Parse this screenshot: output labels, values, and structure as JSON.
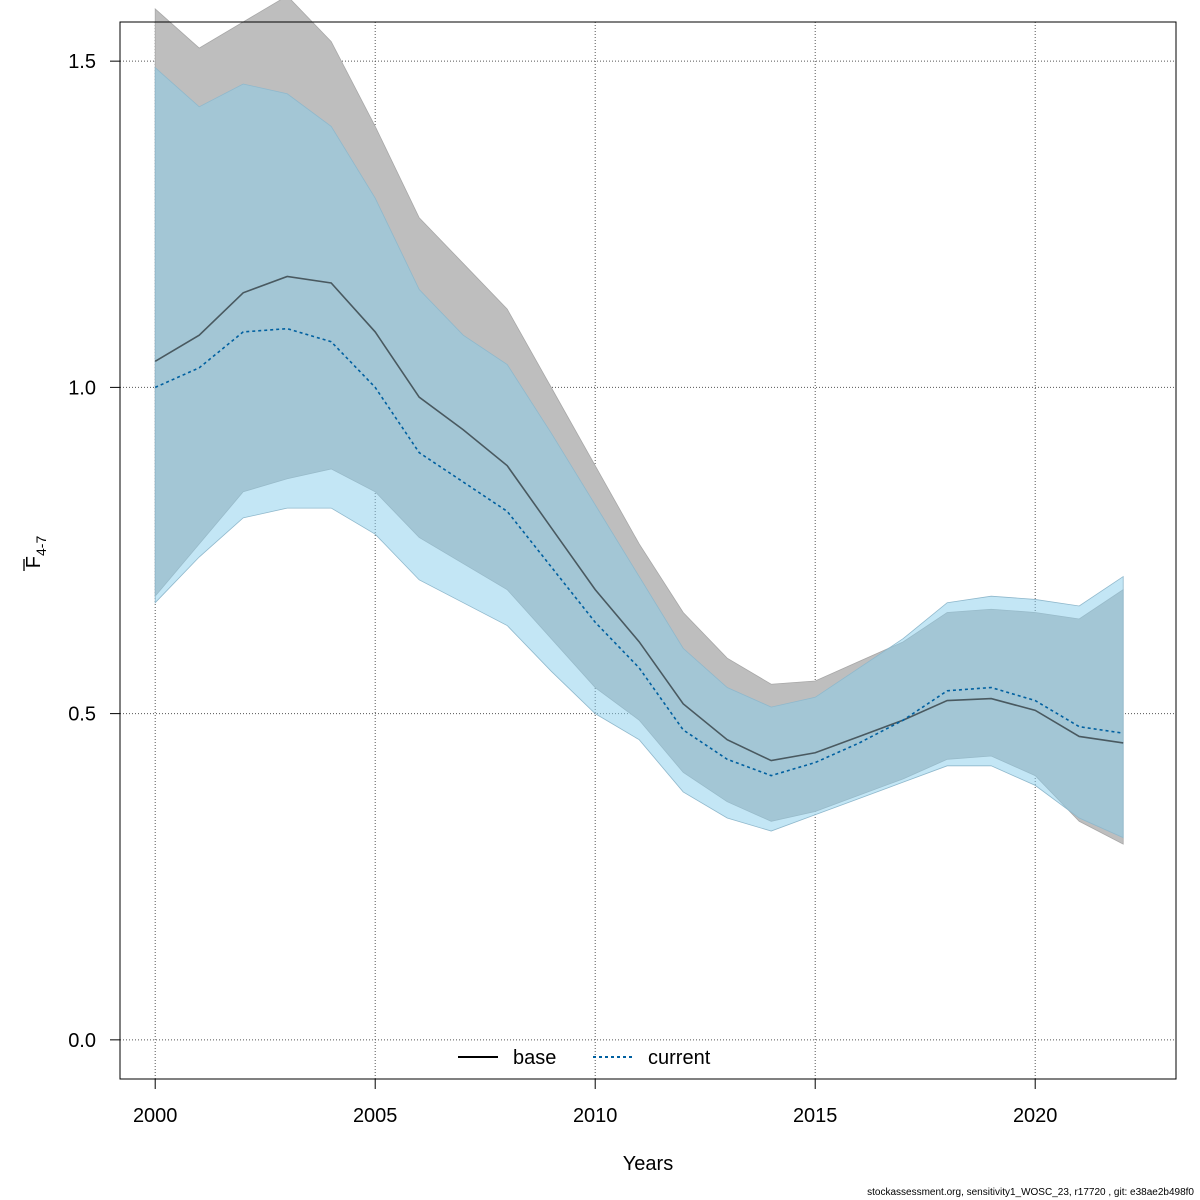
{
  "chart_data": {
    "type": "line",
    "xlabel": "Years",
    "ylabel": "F",
    "ylabel_sub": "4-7",
    "xlim": [
      1999.2,
      2023.2
    ],
    "ylim": [
      -0.06,
      1.56
    ],
    "x_ticks": [
      2000,
      2005,
      2010,
      2015,
      2020
    ],
    "y_ticks": [
      0.0,
      0.5,
      1.0,
      1.5
    ],
    "y_tick_labels": [
      "0.0",
      "0.5",
      "1.0",
      "1.5"
    ],
    "grid": true,
    "legend_position": "bottom-center",
    "x": [
      2000,
      2001,
      2002,
      2003,
      2004,
      2005,
      2006,
      2007,
      2008,
      2009,
      2010,
      2011,
      2012,
      2013,
      2014,
      2015,
      2016,
      2017,
      2018,
      2019,
      2020,
      2021,
      2022
    ],
    "series": [
      {
        "name": "base",
        "line_style": "solid",
        "color": "#000000",
        "band_color": "#bebebe",
        "values": [
          1.04,
          1.08,
          1.145,
          1.17,
          1.16,
          1.085,
          0.985,
          0.935,
          0.88,
          0.785,
          0.69,
          0.61,
          0.515,
          0.46,
          0.428,
          0.44,
          0.465,
          0.49,
          0.52,
          0.523,
          0.505,
          0.465,
          0.455
        ],
        "lower": [
          0.68,
          0.76,
          0.84,
          0.86,
          0.875,
          0.84,
          0.77,
          0.73,
          0.69,
          0.615,
          0.54,
          0.49,
          0.41,
          0.365,
          0.335,
          0.35,
          0.375,
          0.4,
          0.43,
          0.435,
          0.405,
          0.335,
          0.3
        ],
        "upper": [
          1.58,
          1.52,
          1.56,
          1.6,
          1.53,
          1.4,
          1.26,
          1.19,
          1.12,
          1.0,
          0.88,
          0.76,
          0.655,
          0.585,
          0.545,
          0.55,
          0.58,
          0.61,
          0.655,
          0.66,
          0.655,
          0.645,
          0.69
        ]
      },
      {
        "name": "current",
        "line_style": "dotted",
        "color": "#0060a0",
        "band_color": "#87ceeb",
        "values": [
          1.0,
          1.03,
          1.085,
          1.09,
          1.07,
          1.0,
          0.9,
          0.855,
          0.81,
          0.725,
          0.64,
          0.57,
          0.475,
          0.43,
          0.405,
          0.425,
          0.455,
          0.49,
          0.535,
          0.54,
          0.52,
          0.48,
          0.47
        ],
        "lower": [
          0.67,
          0.74,
          0.8,
          0.815,
          0.815,
          0.775,
          0.705,
          0.67,
          0.635,
          0.565,
          0.5,
          0.46,
          0.38,
          0.34,
          0.32,
          0.345,
          0.37,
          0.395,
          0.42,
          0.42,
          0.39,
          0.34,
          0.31
        ],
        "upper": [
          1.49,
          1.43,
          1.465,
          1.45,
          1.4,
          1.29,
          1.15,
          1.08,
          1.035,
          0.93,
          0.82,
          0.71,
          0.6,
          0.54,
          0.51,
          0.525,
          0.57,
          0.615,
          0.67,
          0.68,
          0.675,
          0.665,
          0.71
        ]
      }
    ]
  },
  "footer": "stockassessment.org, sensitivity1_WOSC_23, r17720 , git: e38ae2b498f0"
}
